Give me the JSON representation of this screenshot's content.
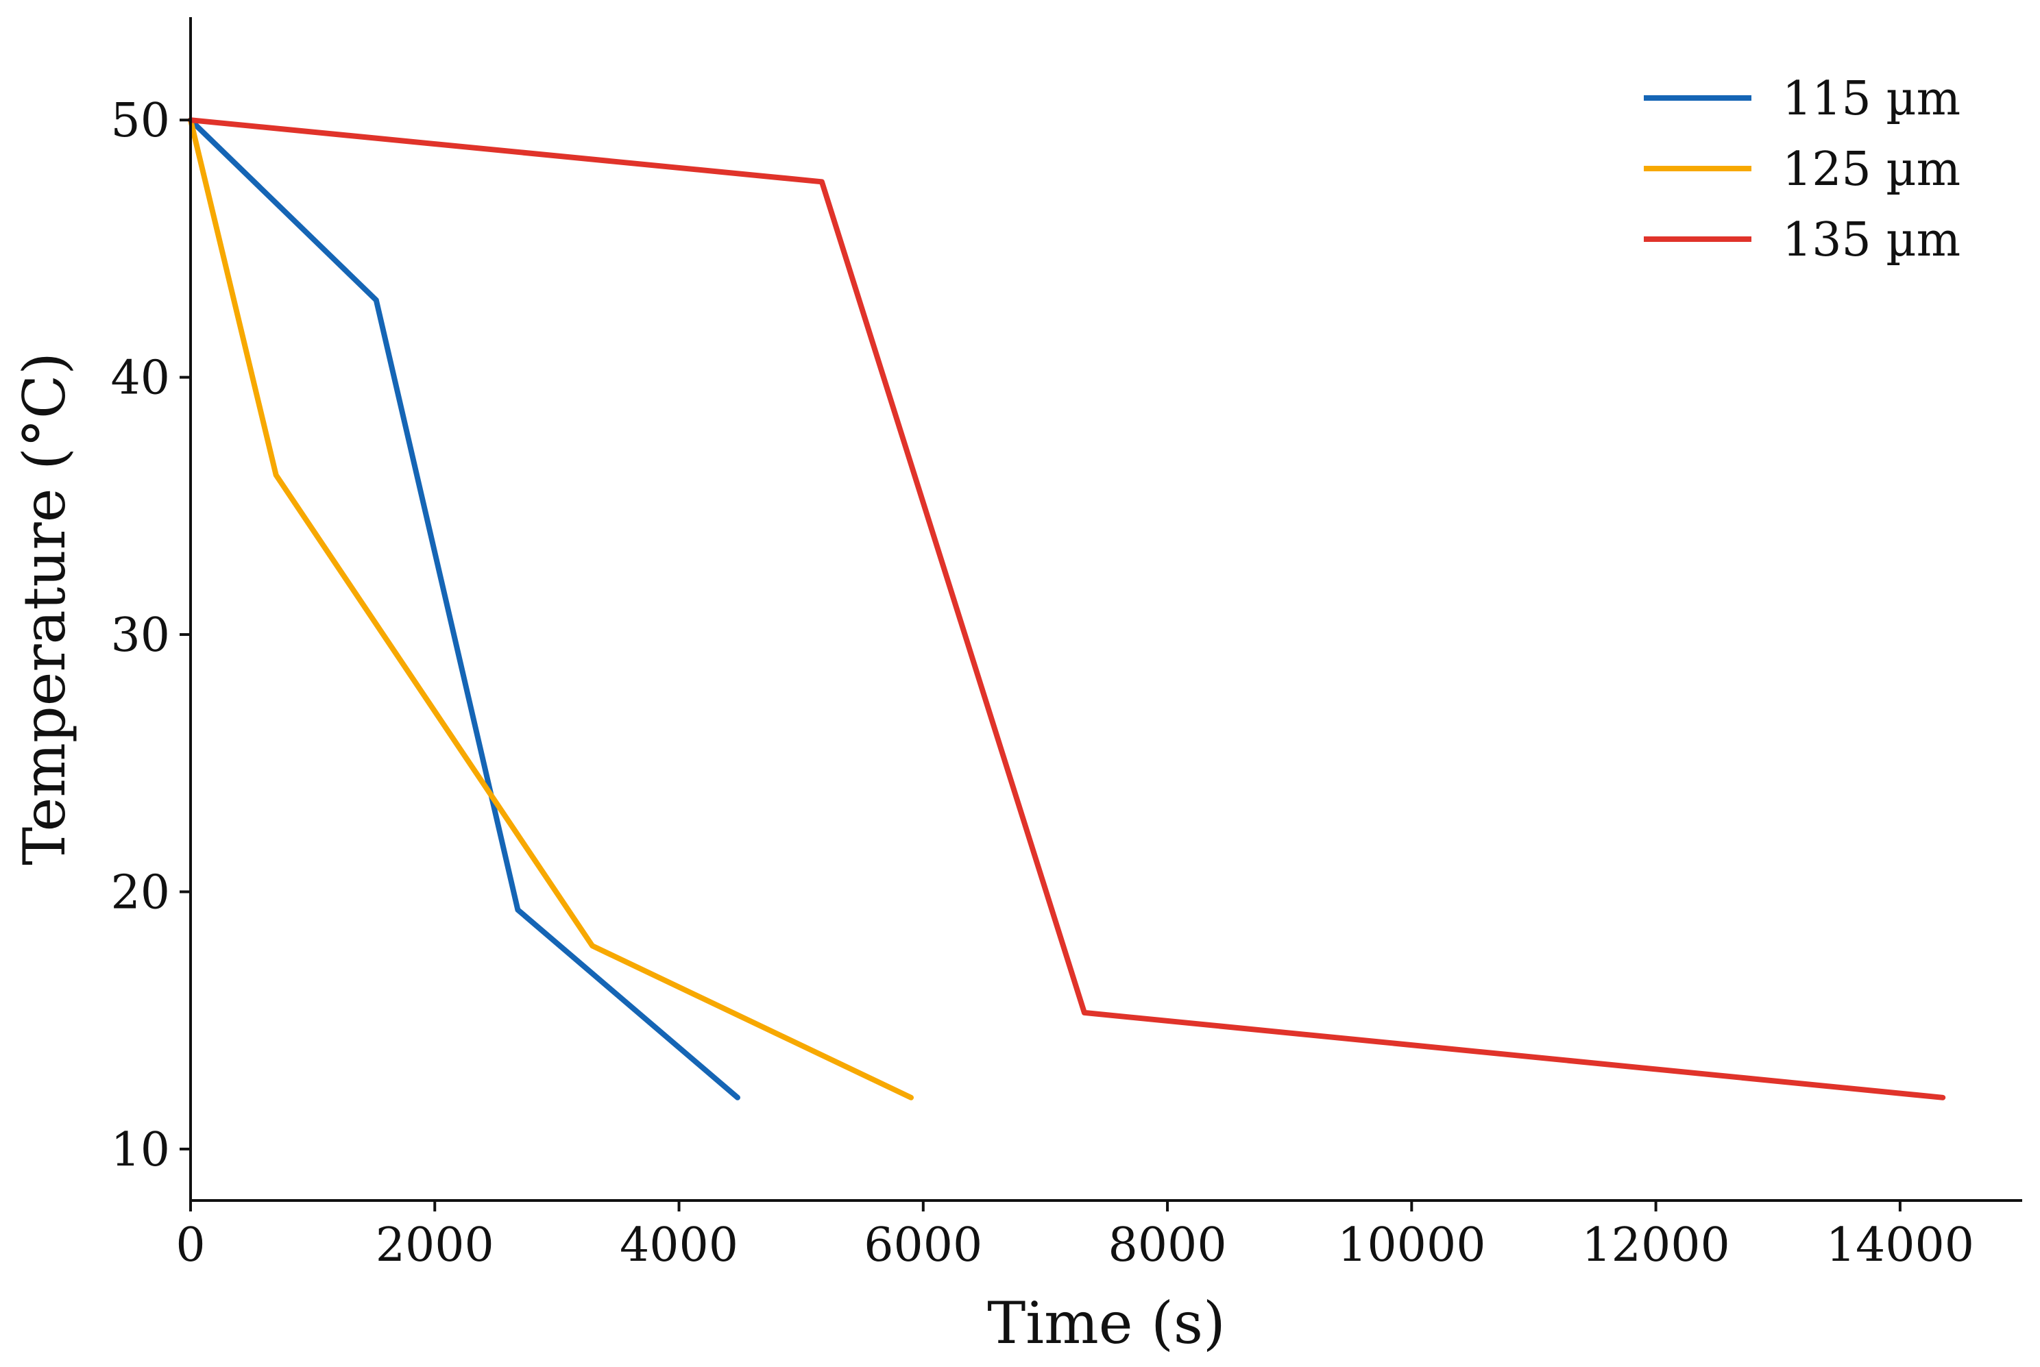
{
  "chart_data": {
    "type": "line",
    "title": "",
    "xlabel": "Time (s)",
    "ylabel": "Temperature (°C)",
    "xlim": [
      0,
      15000
    ],
    "ylim": [
      8,
      54
    ],
    "xticks": [
      0,
      2000,
      4000,
      6000,
      8000,
      10000,
      12000,
      14000
    ],
    "yticks": [
      10,
      20,
      30,
      40,
      50
    ],
    "grid": false,
    "legend_position": "top-right",
    "series": [
      {
        "name": "115 µm",
        "color": "#1565b5",
        "points": [
          [
            0,
            50
          ],
          [
            1520,
            43
          ],
          [
            2680,
            19.3
          ],
          [
            4480,
            12
          ]
        ]
      },
      {
        "name": "125 µm",
        "color": "#f7a800",
        "points": [
          [
            0,
            50
          ],
          [
            700,
            36.2
          ],
          [
            3290,
            17.9
          ],
          [
            5900,
            12
          ]
        ]
      },
      {
        "name": "135 µm",
        "color": "#e0332a",
        "points": [
          [
            0,
            50
          ],
          [
            5170,
            47.6
          ],
          [
            7320,
            15.3
          ],
          [
            14350,
            12
          ]
        ]
      }
    ]
  }
}
